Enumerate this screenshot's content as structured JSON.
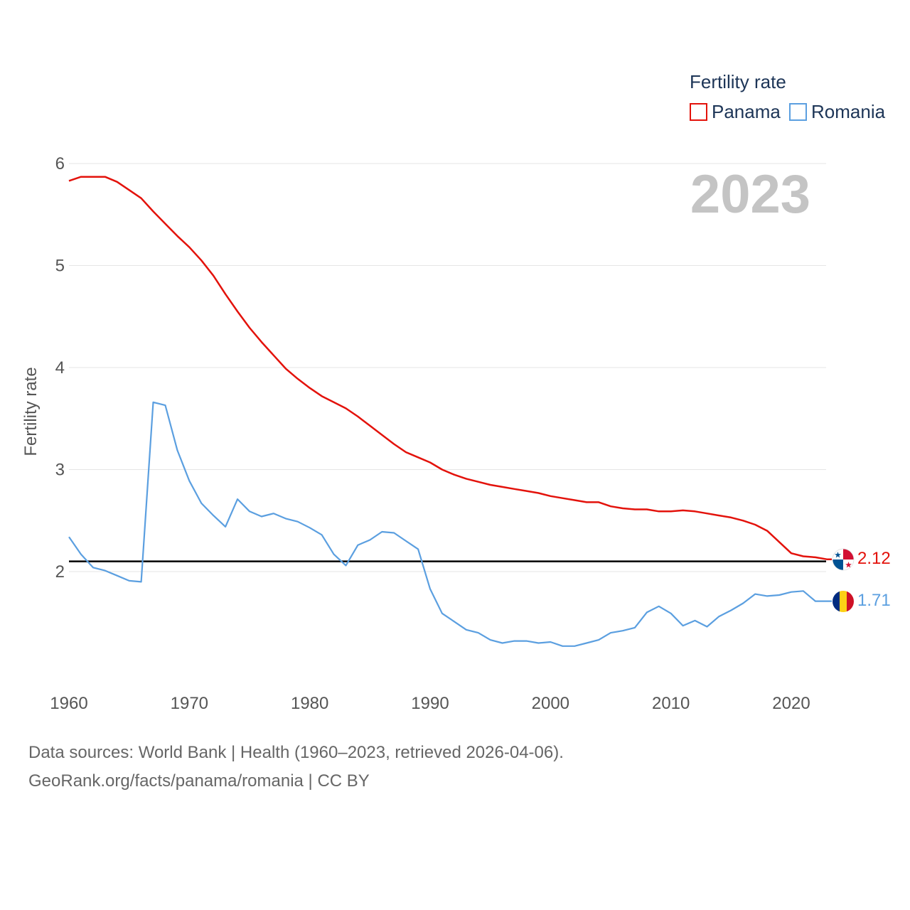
{
  "chart_data": {
    "type": "line",
    "ylabel": "Fertility rate",
    "xlabel": "",
    "year_label": "2023",
    "legend_title": "Fertility rate",
    "legend_position": "top-right",
    "xlim": [
      1960,
      2023
    ],
    "ylim": [
      1.0,
      6.2
    ],
    "x_ticks": [
      1960,
      1970,
      1980,
      1990,
      2000,
      2010,
      2020
    ],
    "x_tick_labels": [
      "1960",
      "1970",
      "1980",
      "1990",
      "2000",
      "2010",
      "2020"
    ],
    "y_ticks": [
      2,
      3,
      4,
      5,
      6
    ],
    "y_tick_labels": [
      "2",
      "3",
      "4",
      "5",
      "6"
    ],
    "grid": true,
    "reference_line": {
      "value": 2.1,
      "color": "#000000"
    },
    "x": [
      1960,
      1961,
      1962,
      1963,
      1964,
      1965,
      1966,
      1967,
      1968,
      1969,
      1970,
      1971,
      1972,
      1973,
      1974,
      1975,
      1976,
      1977,
      1978,
      1979,
      1980,
      1981,
      1982,
      1983,
      1984,
      1985,
      1986,
      1987,
      1988,
      1989,
      1990,
      1991,
      1992,
      1993,
      1994,
      1995,
      1996,
      1997,
      1998,
      1999,
      2000,
      2001,
      2002,
      2003,
      2004,
      2005,
      2006,
      2007,
      2008,
      2009,
      2010,
      2011,
      2012,
      2013,
      2014,
      2015,
      2016,
      2017,
      2018,
      2019,
      2020,
      2021,
      2022,
      2023
    ],
    "series": [
      {
        "name": "Panama",
        "color": "#e3120b",
        "end_label": "2.12",
        "values": [
          5.83,
          5.87,
          5.87,
          5.87,
          5.82,
          5.74,
          5.66,
          5.53,
          5.41,
          5.29,
          5.18,
          5.05,
          4.9,
          4.72,
          4.55,
          4.39,
          4.25,
          4.12,
          3.99,
          3.89,
          3.8,
          3.72,
          3.66,
          3.6,
          3.52,
          3.43,
          3.34,
          3.25,
          3.17,
          3.12,
          3.07,
          3.0,
          2.95,
          2.91,
          2.88,
          2.85,
          2.83,
          2.81,
          2.79,
          2.77,
          2.74,
          2.72,
          2.7,
          2.68,
          2.68,
          2.64,
          2.62,
          2.61,
          2.61,
          2.59,
          2.59,
          2.6,
          2.59,
          2.57,
          2.55,
          2.53,
          2.5,
          2.46,
          2.4,
          2.29,
          2.18,
          2.15,
          2.14,
          2.12
        ]
      },
      {
        "name": "Romania",
        "color": "#5b9fe0",
        "end_label": "1.71",
        "values": [
          2.34,
          2.17,
          2.04,
          2.01,
          1.96,
          1.91,
          1.9,
          3.66,
          3.63,
          3.19,
          2.89,
          2.67,
          2.55,
          2.44,
          2.71,
          2.59,
          2.54,
          2.57,
          2.52,
          2.49,
          2.43,
          2.36,
          2.17,
          2.06,
          2.26,
          2.31,
          2.39,
          2.38,
          2.3,
          2.22,
          1.83,
          1.59,
          1.51,
          1.43,
          1.4,
          1.33,
          1.3,
          1.32,
          1.32,
          1.3,
          1.31,
          1.27,
          1.27,
          1.3,
          1.33,
          1.4,
          1.42,
          1.45,
          1.6,
          1.66,
          1.59,
          1.47,
          1.52,
          1.46,
          1.56,
          1.62,
          1.69,
          1.78,
          1.76,
          1.77,
          1.8,
          1.81,
          1.71,
          1.71
        ]
      }
    ]
  },
  "footer": {
    "sources": "Data sources: World Bank | Health (1960–2023, retrieved 2026-04-06).",
    "attribution": "GeoRank.org/facts/panama/romania | CC BY"
  }
}
